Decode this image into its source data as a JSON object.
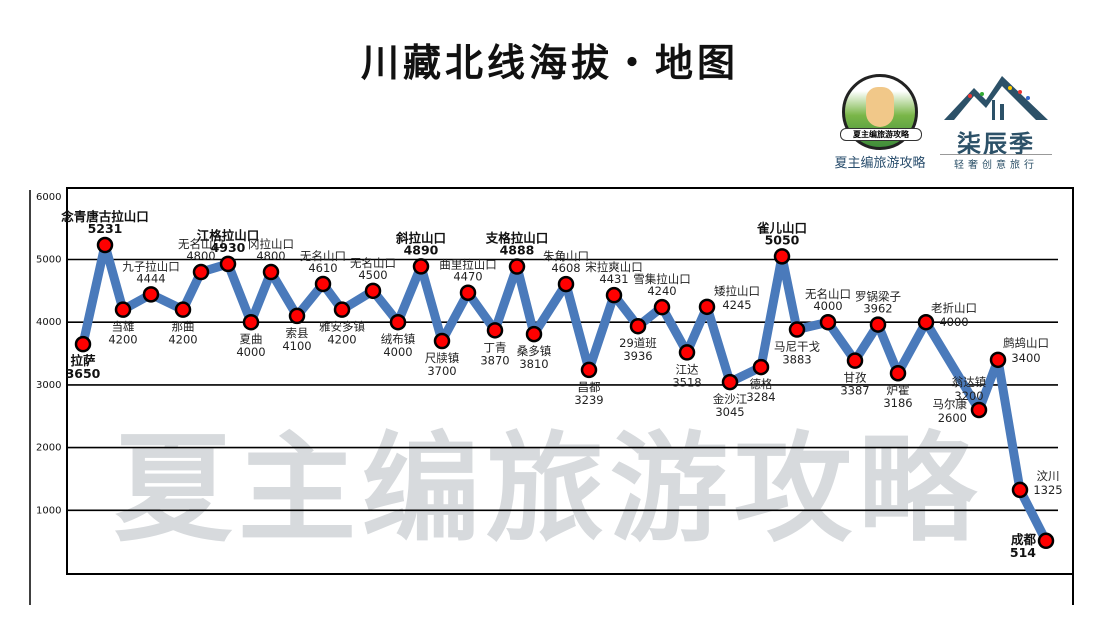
{
  "header": {
    "title": "川藏北线海拔・地图"
  },
  "logos": {
    "left": {
      "badge": "夏主编旅游攻略",
      "name": "夏主编旅游攻略"
    },
    "right": {
      "name": "柒辰季",
      "tagline": "轻奢创意旅行"
    }
  },
  "watermark": "夏主编旅游攻略",
  "chart_data": {
    "type": "line",
    "title": "川藏北线海拔・地图",
    "ylim": [
      0,
      6000
    ],
    "yticks": [
      "1000",
      "2000",
      "3000",
      "4000",
      "5000",
      "6000"
    ],
    "grid": true,
    "colors": {
      "line": "#4a7abb",
      "marker": "#ff0000",
      "marker_edge": "#000000"
    },
    "points": [
      {
        "name": "拉萨",
        "value": 3650,
        "bold": true
      },
      {
        "name": "念青唐古拉山口",
        "value": 5231,
        "bold": true
      },
      {
        "name": "当雄",
        "value": 4200
      },
      {
        "name": "九子拉山口",
        "value": 4444
      },
      {
        "name": "那曲",
        "value": 4200
      },
      {
        "name": "无名山口",
        "value": 4800
      },
      {
        "name": "江格拉山口",
        "value": 4930,
        "bold": true
      },
      {
        "name": "夏曲",
        "value": 4000
      },
      {
        "name": "冈拉山口",
        "value": 4800
      },
      {
        "name": "索县",
        "value": 4100
      },
      {
        "name": "无名山口",
        "value": 4610
      },
      {
        "name": "雅安多镇",
        "value": 4200
      },
      {
        "name": "无名山口",
        "value": 4500
      },
      {
        "name": "绒布镇",
        "value": 4000
      },
      {
        "name": "斜拉山口",
        "value": 4890,
        "bold": true
      },
      {
        "name": "尺牍镇",
        "value": 3700
      },
      {
        "name": "曲里拉山口",
        "value": 4470
      },
      {
        "name": "丁青",
        "value": 3870
      },
      {
        "name": "支格拉山口",
        "value": 4888,
        "bold": true
      },
      {
        "name": "桑多镇",
        "value": 3810
      },
      {
        "name": "朱角山口",
        "value": 4608
      },
      {
        "name": "昌都",
        "value": 3239
      },
      {
        "name": "宋拉爽山口",
        "value": 4431
      },
      {
        "name": "29道班",
        "value": 3936
      },
      {
        "name": "雪集拉山口",
        "value": 4240
      },
      {
        "name": "江达",
        "value": 3518
      },
      {
        "name": "矮拉山口",
        "value": 4245
      },
      {
        "name": "金沙江",
        "value": 3045
      },
      {
        "name": "德格",
        "value": 3284
      },
      {
        "name": "雀儿山口",
        "value": 5050,
        "bold": true
      },
      {
        "name": "马尼干戈",
        "value": 3883
      },
      {
        "name": "无名山口",
        "value": 4000
      },
      {
        "name": "甘孜",
        "value": 3387
      },
      {
        "name": "罗锅梁子",
        "value": 3962
      },
      {
        "name": "炉霍",
        "value": 3186
      },
      {
        "name": "老折山口",
        "value": 4000
      },
      {
        "name": "马尔康",
        "value": 2600
      },
      {
        "name": "鹧鸪山口",
        "value": 3400
      },
      {
        "name": "汶川",
        "value": 1325
      },
      {
        "name": "成都",
        "value": 514,
        "bold": true
      }
    ],
    "annotations": [
      {
        "name": "翁达镇",
        "value": 3200
      }
    ]
  }
}
